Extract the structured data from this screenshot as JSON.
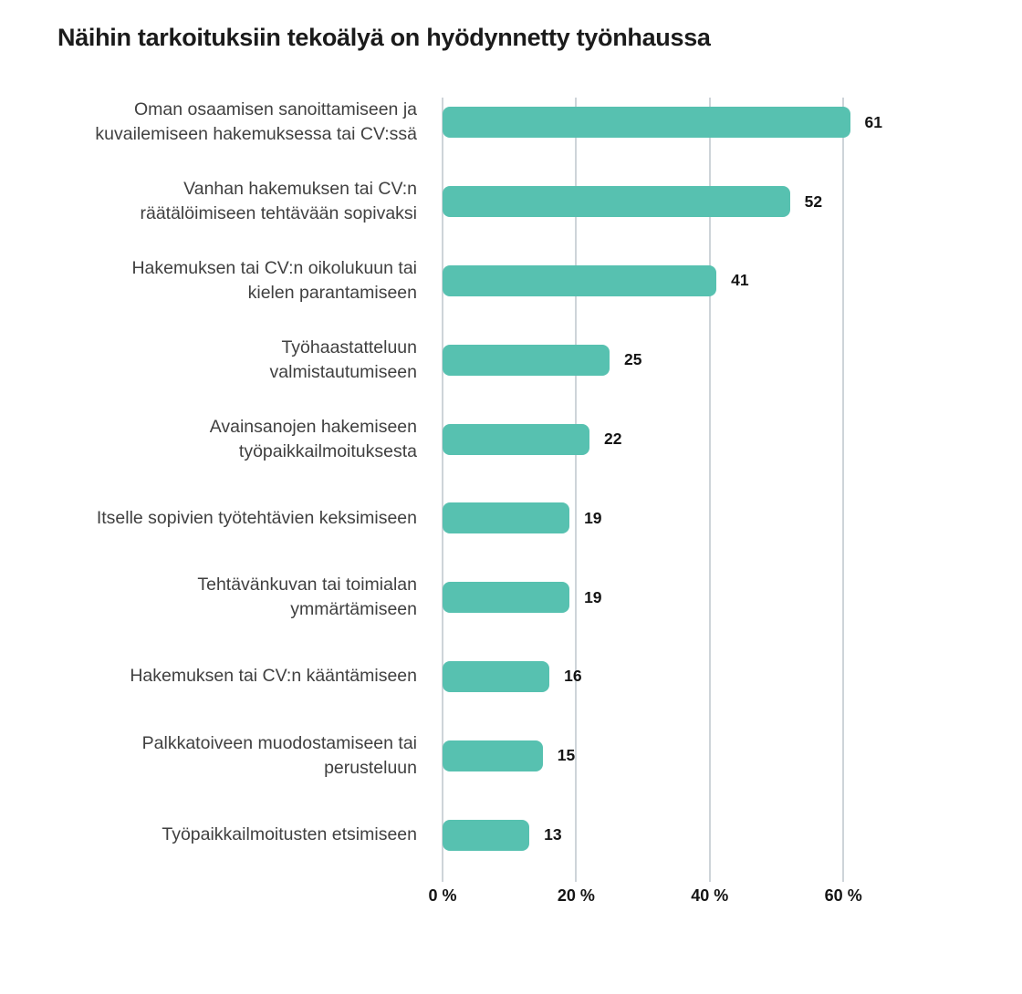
{
  "title": "Näihin tarkoituksiin tekoälyä on hyödynnetty työnhaussa",
  "colors": {
    "bar": "#57c1b0",
    "gridline": "#ced4d9",
    "title_text": "#1b1b1b",
    "category_text": "#404040",
    "value_text": "#141414",
    "tick_text": "#141414",
    "background": "#ffffff"
  },
  "chart_data": {
    "type": "bar",
    "orientation": "horizontal",
    "title": "Näihin tarkoituksiin tekoälyä on hyödynnetty työnhaussa",
    "unit": "%",
    "xlabel": "",
    "ylabel": "",
    "xlim": [
      0,
      65
    ],
    "grid": "vertical-only",
    "legend": "none",
    "value_label_position": "end-of-bar",
    "x_ticks": [
      {
        "value": 0,
        "label": "0 %"
      },
      {
        "value": 20,
        "label": "20 %"
      },
      {
        "value": 40,
        "label": "40 %"
      },
      {
        "value": 60,
        "label": "60 %"
      }
    ],
    "categories": [
      "Oman osaamisen sanoittamiseen ja kuvailemiseen hakemuksessa tai CV:ssä",
      "Vanhan hakemuksen tai CV:n räätälöimiseen tehtävään sopivaksi",
      "Hakemuksen tai CV:n oikolukuun tai kielen parantamiseen",
      "Työhaastatteluun valmistautumiseen",
      "Avainsanojen hakemiseen työpaikkailmoituksesta",
      "Itselle sopivien työtehtävien keksimiseen",
      "Tehtävänkuvan tai toimialan ymmärtämiseen",
      "Hakemuksen tai CV:n kääntämiseen",
      "Palkkatoiveen muodostamiseen tai perusteluun",
      "Työpaikkailmoitusten etsimiseen"
    ],
    "category_lines": [
      [
        "Oman osaamisen sanoittamiseen ja",
        "kuvailemiseen hakemuksessa tai CV:ssä"
      ],
      [
        "Vanhan hakemuksen tai CV:n",
        "räätälöimiseen tehtävään sopivaksi"
      ],
      [
        "Hakemuksen tai CV:n oikolukuun tai",
        "kielen parantamiseen"
      ],
      [
        "Työhaastatteluun",
        "valmistautumiseen"
      ],
      [
        "Avainsanojen hakemiseen",
        "työpaikkailmoituksesta"
      ],
      [
        "Itselle sopivien työtehtävien keksimiseen"
      ],
      [
        "Tehtävänkuvan tai toimialan",
        "ymmärtämiseen"
      ],
      [
        "Hakemuksen tai CV:n kääntämiseen"
      ],
      [
        "Palkkatoiveen muodostamiseen tai",
        "perusteluun"
      ],
      [
        "Työpaikkailmoitusten etsimiseen"
      ]
    ],
    "values": [
      61,
      52,
      41,
      25,
      22,
      19,
      19,
      16,
      15,
      13
    ],
    "value_labels": [
      "61",
      "52",
      "41",
      "25",
      "22",
      "19",
      "19",
      "16",
      "15",
      "13"
    ]
  }
}
